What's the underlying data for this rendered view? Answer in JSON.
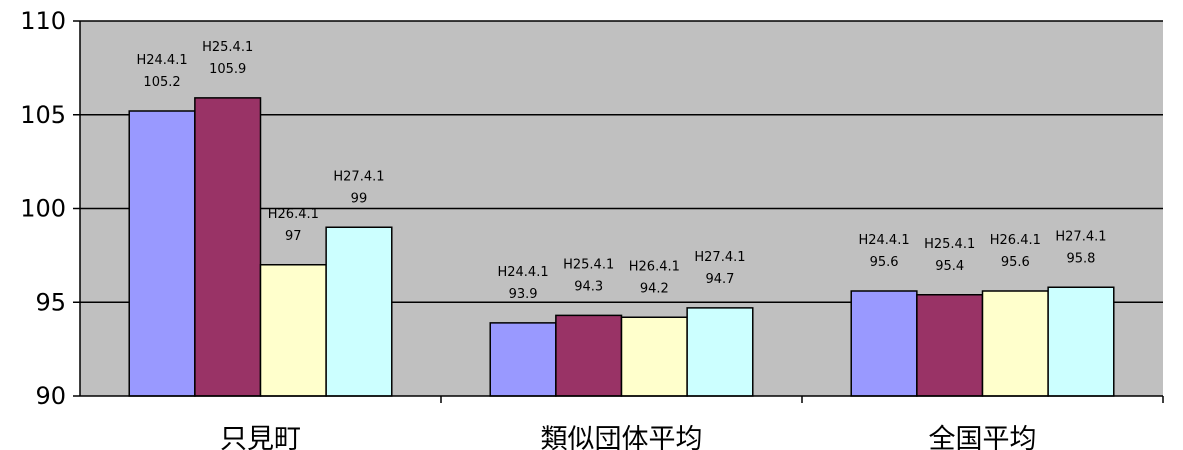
{
  "chart_data": {
    "type": "bar",
    "categories": [
      "只見町",
      "類似団体平均",
      "全国平均"
    ],
    "series": [
      {
        "name": "H24.4.1",
        "values": [
          105.2,
          93.9,
          95.6
        ]
      },
      {
        "name": "H25.4.1",
        "values": [
          105.9,
          94.3,
          95.4
        ]
      },
      {
        "name": "H26.4.1",
        "values": [
          97,
          94.2,
          95.6
        ]
      },
      {
        "name": "H27.4.1",
        "values": [
          99,
          94.7,
          95.8
        ]
      }
    ],
    "yticks": [
      90,
      95,
      100,
      105,
      110
    ],
    "ylim": [
      90,
      110
    ],
    "grid": true,
    "legend": "none",
    "colors": [
      "#9999ff",
      "#993366",
      "#ffffcc",
      "#ccffff"
    ],
    "plot_background": "#c0c0c0"
  }
}
